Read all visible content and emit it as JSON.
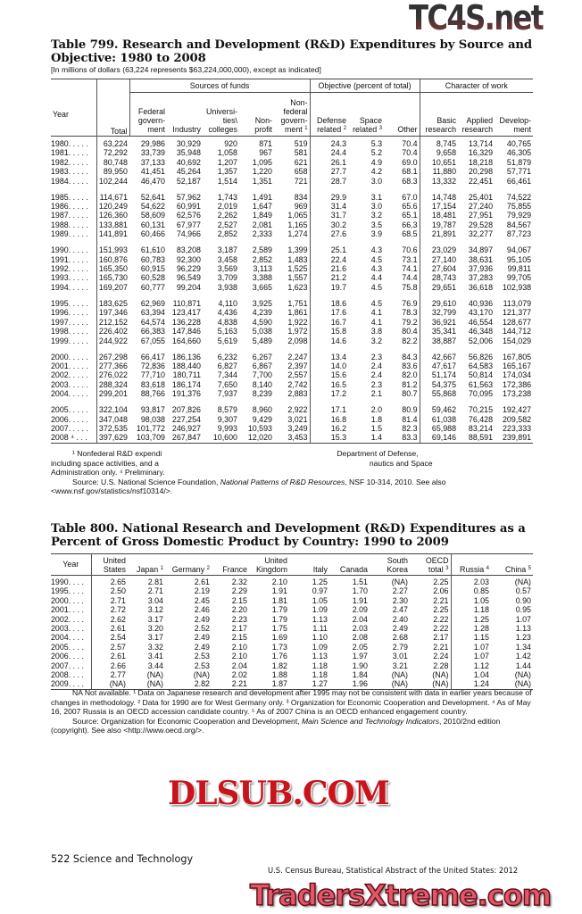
{
  "watermarks": {
    "top": "TC4S.net",
    "middle": "DLSUB.COM",
    "bottom": "TradersXtreme.com"
  },
  "table799": {
    "title_line1": "Table 799. Research and Development (R&D) Expenditures by Source and",
    "title_line2": "Objective: 1980 to 2008",
    "headnote": "[In millions of dollars (63,224 represents $63,224,000,000), except as indicated]",
    "groups": {
      "sources": "Sources of funds",
      "objective": "Objective (percent of total)",
      "character": "Character of work"
    },
    "columns": [
      {
        "label": "Year"
      },
      {
        "label": "Total"
      },
      {
        "label": "Federal\ngovern-\nment"
      },
      {
        "label": "Industry"
      },
      {
        "label": "Universi-\nties\\\ncolleges"
      },
      {
        "label": "Non-\nprofit"
      },
      {
        "label": "Non-\nfederal\ngovern-\nment",
        "sup": "1"
      },
      {
        "label": "Defense\nrelated",
        "sup": "2"
      },
      {
        "label": "Space\nrelated",
        "sup": "3"
      },
      {
        "label": "Other"
      },
      {
        "label": "Basic\nresearch"
      },
      {
        "label": "Applied\nresearch"
      },
      {
        "label": "Develop-\nment"
      }
    ],
    "rows": [
      [
        "1980. . . . .",
        "63,224",
        "29,986",
        "30,929",
        "920",
        "871",
        "519",
        "24.3",
        "5.3",
        "70.4",
        "8,745",
        "13,714",
        "40,765"
      ],
      [
        "1981. . . . .",
        "72,292",
        "33,739",
        "35,948",
        "1,058",
        "967",
        "581",
        "24.4",
        "5.2",
        "70.4",
        "9,658",
        "16,329",
        "46,305"
      ],
      [
        "1982. . . . .",
        "80,748",
        "37,133",
        "40,692",
        "1,207",
        "1,095",
        "621",
        "26.1",
        "4.9",
        "69.0",
        "10,651",
        "18,218",
        "51,879"
      ],
      [
        "1983. . . . .",
        "89,950",
        "41,451",
        "45,264",
        "1,357",
        "1,220",
        "658",
        "27.7",
        "4.2",
        "68.1",
        "11,880",
        "20,298",
        "57,771"
      ],
      [
        "1984. . . . .",
        "102,244",
        "46,470",
        "52,187",
        "1,514",
        "1,351",
        "721",
        "28.7",
        "3.0",
        "68.3",
        "13,332",
        "22,451",
        "66,461"
      ],
      [
        "1985. . . . .",
        "114,671",
        "52,641",
        "57,962",
        "1,743",
        "1,491",
        "834",
        "29.9",
        "3.1",
        "67.0",
        "14,748",
        "25,401",
        "74,522"
      ],
      [
        "1986. . . . .",
        "120,249",
        "54,622",
        "60,991",
        "2,019",
        "1,647",
        "969",
        "31.4",
        "3.0",
        "65.6",
        "17,154",
        "27,240",
        "75,855"
      ],
      [
        "1987. . . . .",
        "126,360",
        "58,609",
        "62,576",
        "2,262",
        "1,849",
        "1,065",
        "31.7",
        "3.2",
        "65.1",
        "18,481",
        "27,951",
        "79,929"
      ],
      [
        "1988. . . . .",
        "133,881",
        "60,131",
        "67,977",
        "2,527",
        "2,081",
        "1,165",
        "30.2",
        "3.5",
        "66.3",
        "19,787",
        "29,528",
        "84,567"
      ],
      [
        "1989. . . . .",
        "141,891",
        "60,466",
        "74,966",
        "2,852",
        "2,333",
        "1,274",
        "27.6",
        "3.9",
        "68.5",
        "21,891",
        "32,277",
        "87,723"
      ],
      [
        "1990. . . . .",
        "151,993",
        "61,610",
        "83,208",
        "3,187",
        "2,589",
        "1,399",
        "25.1",
        "4.3",
        "70.6",
        "23,029",
        "34,897",
        "94,067"
      ],
      [
        "1991. . . . .",
        "160,876",
        "60,783",
        "92,300",
        "3,458",
        "2,852",
        "1,483",
        "22.4",
        "4.5",
        "73.1",
        "27,140",
        "38,631",
        "95,105"
      ],
      [
        "1992. . . . .",
        "165,350",
        "60,915",
        "96,229",
        "3,569",
        "3,113",
        "1,525",
        "21.6",
        "4.3",
        "74.1",
        "27,604",
        "37,936",
        "99,811"
      ],
      [
        "1993. . . . .",
        "165,730",
        "60,528",
        "96,549",
        "3,709",
        "3,388",
        "1,557",
        "21.2",
        "4.4",
        "74.4",
        "28,743",
        "37,283",
        "99,705"
      ],
      [
        "1994. . . . .",
        "169,207",
        "60,777",
        "99,204",
        "3,938",
        "3,665",
        "1,623",
        "19.7",
        "4.5",
        "75.8",
        "29,651",
        "36,618",
        "102,938"
      ],
      [
        "1995. . . . .",
        "183,625",
        "62,969",
        "110,871",
        "4,110",
        "3,925",
        "1,751",
        "18.6",
        "4.5",
        "76.9",
        "29,610",
        "40,936",
        "113,079"
      ],
      [
        "1996. . . . .",
        "197,346",
        "63,394",
        "123,417",
        "4,436",
        "4,239",
        "1,861",
        "17.6",
        "4.1",
        "78.3",
        "32,799",
        "43,170",
        "121,377"
      ],
      [
        "1997. . . . .",
        "212,152",
        "64,574",
        "136,228",
        "4,838",
        "4,590",
        "1,922",
        "16.7",
        "4.1",
        "79.2",
        "36,921",
        "46,554",
        "128,677"
      ],
      [
        "1998. . . . .",
        "226,402",
        "66,383",
        "147,846",
        "5,163",
        "5,038",
        "1,972",
        "15.8",
        "3.8",
        "80.4",
        "35,341",
        "46,348",
        "144,712"
      ],
      [
        "1999. . . . .",
        "244,922",
        "67,055",
        "164,660",
        "5,619",
        "5,489",
        "2,098",
        "14.6",
        "3.2",
        "82.2",
        "38,887",
        "52,006",
        "154,029"
      ],
      [
        "2000. . . . .",
        "267,298",
        "66,417",
        "186,136",
        "6,232",
        "6,267",
        "2,247",
        "13.4",
        "2.3",
        "84.3",
        "42,667",
        "56,826",
        "167,805"
      ],
      [
        "2001. . . . .",
        "277,366",
        "72,836",
        "188,440",
        "6,827",
        "6,867",
        "2,397",
        "14.0",
        "2.4",
        "83.6",
        "47,617",
        "64,583",
        "165,167"
      ],
      [
        "2002. . . . .",
        "276,022",
        "77,710",
        "180,711",
        "7,344",
        "7,700",
        "2,557",
        "15.6",
        "2.4",
        "82.0",
        "51,174",
        "50,814",
        "174,034"
      ],
      [
        "2003. . . . .",
        "288,324",
        "83,618",
        "186,174",
        "7,650",
        "8,140",
        "2,742",
        "16.5",
        "2.3",
        "81.2",
        "54,375",
        "61,563",
        "172,386"
      ],
      [
        "2004. . . . .",
        "299,201",
        "88,766",
        "191,376",
        "7,937",
        "8,239",
        "2,883",
        "17.2",
        "2.1",
        "80.7",
        "55,868",
        "70,095",
        "173,238"
      ],
      [
        "2005. . . . .",
        "322,104",
        "93,817",
        "207,826",
        "8,579",
        "8,960",
        "2,922",
        "17.1",
        "2.0",
        "80.9",
        "59,462",
        "70,215",
        "192,427"
      ],
      [
        "2006. . . . .",
        "347,048",
        "98,038",
        "227,254",
        "9,307",
        "9,429",
        "3,021",
        "16.8",
        "1.8",
        "81.4",
        "61,038",
        "76,428",
        "209,582"
      ],
      [
        "2007. . . . .",
        "372,535",
        "101,772",
        "246,927",
        "9,993",
        "10,593",
        "3,249",
        "16.2",
        "1.5",
        "82.3",
        "65,988",
        "83,214",
        "223,333"
      ],
      [
        "2008 ⁴ . . .",
        "397,629",
        "103,709",
        "267,847",
        "10,600",
        "12,020",
        "3,453",
        "15.3",
        "1.4",
        "83.3",
        "69,146",
        "88,591",
        "239,891"
      ]
    ],
    "footnote_line1_a": "¹ Nonfederal R&D expendi",
    "footnote_line1_b": "Department of Defense,",
    "footnote_line2_a": "including space activities, and a",
    "footnote_line2_b": "nautics and Space",
    "footnote_line3": "Administration only. ⁴ Preliminary.",
    "source_prefix": "Source: U.S. National Science Foundation, ",
    "source_title": "National Patterns of R&D Resources",
    "source_suffix": ", NSF 10-314, 2010. See also",
    "source_url": "<www.nsf.gov/statistics/nsf10314/>."
  },
  "table800": {
    "title_line1": "Table 800. National Research and Development (R&D) Expenditures as a",
    "title_line2": "Percent of Gross Domestic Product by Country: 1990 to 2009",
    "columns": [
      {
        "label": "Year"
      },
      {
        "label": "United\nStates"
      },
      {
        "label": "Japan",
        "sup": "1"
      },
      {
        "label": "Germany",
        "sup": "2"
      },
      {
        "label": "France"
      },
      {
        "label": "United\nKingdom"
      },
      {
        "label": "Italy"
      },
      {
        "label": "Canada"
      },
      {
        "label": "South\nKorea"
      },
      {
        "label": "OECD\ntotal",
        "sup": "3"
      },
      {
        "label": "Russia",
        "sup": "4"
      },
      {
        "label": "China",
        "sup": "5"
      }
    ],
    "rows": [
      [
        "1990. . . .",
        "2.65",
        "2.81",
        "2.61",
        "2.32",
        "2.10",
        "1.25",
        "1.51",
        "(NA)",
        "2.25",
        "2.03",
        "(NA)"
      ],
      [
        "1995. . . .",
        "2.50",
        "2.71",
        "2.19",
        "2.29",
        "1.91",
        "0.97",
        "1.70",
        "2.27",
        "2.06",
        "0.85",
        "0.57"
      ],
      [
        "2000. . . .",
        "2.71",
        "3.04",
        "2.45",
        "2.15",
        "1.81",
        "1.05",
        "1.91",
        "2.30",
        "2.21",
        "1.05",
        "0.90"
      ],
      [
        "2001. . . .",
        "2.72",
        "3.12",
        "2.46",
        "2.20",
        "1.79",
        "1.09",
        "2.09",
        "2.47",
        "2.25",
        "1.18",
        "0.95"
      ],
      [
        "2002. . . .",
        "2.62",
        "3.17",
        "2.49",
        "2.23",
        "1.79",
        "1.13",
        "2.04",
        "2.40",
        "2.22",
        "1.25",
        "1.07"
      ],
      [
        "2003. . . .",
        "2.61",
        "3.20",
        "2.52",
        "2.17",
        "1.75",
        "1.11",
        "2.03",
        "2.49",
        "2.22",
        "1.28",
        "1.13"
      ],
      [
        "2004. . . .",
        "2.54",
        "3.17",
        "2.49",
        "2.15",
        "1.69",
        "1.10",
        "2.08",
        "2.68",
        "2.17",
        "1.15",
        "1.23"
      ],
      [
        "2005. . . .",
        "2.57",
        "3.32",
        "2.49",
        "2.10",
        "1.73",
        "1.09",
        "2.05",
        "2.79",
        "2.21",
        "1.07",
        "1.34"
      ],
      [
        "2006. . . .",
        "2.61",
        "3.41",
        "2.53",
        "2.10",
        "1.76",
        "1.13",
        "1.97",
        "3.01",
        "2.24",
        "1.07",
        "1.42"
      ],
      [
        "2007. . . .",
        "2.66",
        "3.44",
        "2.53",
        "2.04",
        "1.82",
        "1.18",
        "1.90",
        "3.21",
        "2.28",
        "1.12",
        "1.44"
      ],
      [
        "2008. . . .",
        "2.77",
        "(NA)",
        "(NA)",
        "2.02",
        "1.88",
        "1.18",
        "1.84",
        "(NA)",
        "(NA)",
        "1.04",
        "(NA)"
      ],
      [
        "2009. . . .",
        "(NA)",
        "(NA)",
        "2.82",
        "2.21",
        "1.87",
        "1.27",
        "1.96",
        "(NA)",
        "(NA)",
        "1.24",
        "(NA)"
      ]
    ],
    "footnote": "NA Not available. ¹ Data on Japanese research and development after 1995 may not be consistent with data in earlier years because of changes in methodology. ² Data for 1990 are for West Germany only. ³ Organization for Economic Cooperation and Development. ⁴ As of May 16, 2007 Russia is an OECD accession candidate country. ⁵ As of 2007 China is an OECD enhanced engagement country.",
    "source_prefix": "Source: Organization for Economic Cooperation and Development, ",
    "source_title": "Main Science and Technology Indicators",
    "source_suffix": ", 2010/2nd edition (copyright). See also <http://www.oecd.org/>."
  },
  "footer": {
    "page_label": "522  Science and Technology",
    "publication": "U.S. Census Bureau, Statistical Abstract of the United States: 2012"
  }
}
